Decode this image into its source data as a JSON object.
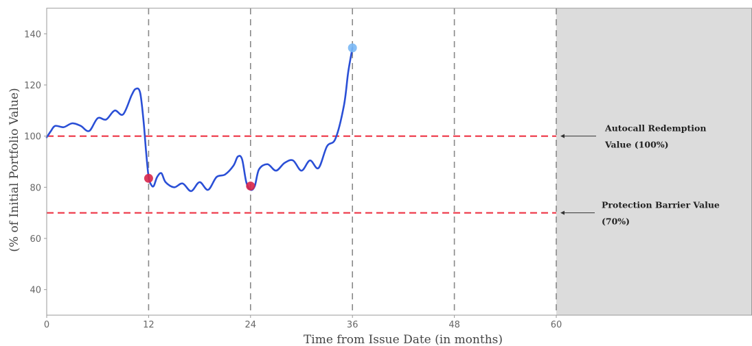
{
  "chart_data": {
    "type": "line",
    "title": "",
    "xlabel": "Time from Issue Date (in months)",
    "ylabel": "(% of Initial Portfolio Value)",
    "xlim": [
      0,
      60
    ],
    "ylim": [
      30,
      150
    ],
    "x_ticks": [
      0,
      12,
      24,
      36,
      48,
      60
    ],
    "y_ticks": [
      40,
      60,
      80,
      100,
      120,
      140
    ],
    "grid": false,
    "vertical_markers": [
      12,
      24,
      36,
      48,
      60
    ],
    "shaded_region": {
      "x_from": 60,
      "color": "#dcdcdc"
    },
    "series": [
      {
        "color": "#2a4fd6",
        "x": [
          0,
          0.5,
          1,
          2,
          3,
          4,
          5,
          6,
          7,
          8,
          9,
          10,
          10.5,
          11,
          11.4,
          11.7,
          12,
          12.3,
          12.6,
          13,
          13.5,
          14,
          15,
          16,
          17,
          18,
          19,
          20,
          21,
          22,
          22.5,
          23,
          23.5,
          24,
          24.5,
          25,
          26,
          27,
          28,
          29,
          30,
          31,
          32,
          33,
          34,
          35,
          35.5,
          36
        ],
        "y": [
          99.5,
          102,
          104,
          103.5,
          105,
          104,
          102,
          107,
          106.5,
          110,
          108.5,
          116,
          118.5,
          117,
          106,
          94,
          84,
          81,
          80.5,
          84,
          85.5,
          82,
          80,
          81.5,
          78.5,
          82,
          79,
          84,
          85,
          88.5,
          92,
          91,
          82,
          79,
          80.5,
          87,
          89,
          86.5,
          89.5,
          90.5,
          86.5,
          90.5,
          87.5,
          96,
          99,
          112,
          125,
          134.5
        ]
      }
    ],
    "markers": [
      {
        "x": 12,
        "y": 83.5,
        "color": "#d8264a"
      },
      {
        "x": 24,
        "y": 80.5,
        "color": "#d8264a"
      },
      {
        "x": 36,
        "y": 134.5,
        "color": "#7ab8f5"
      }
    ],
    "reference_lines": [
      {
        "y": 100,
        "color": "#ee3344",
        "label_line1": "Autocall Redemption",
        "label_line2": "Value (100%)"
      },
      {
        "y": 70,
        "color": "#ee3344",
        "label_line1": "Protection Barrier Value",
        "label_line2": "(70%)"
      }
    ]
  }
}
